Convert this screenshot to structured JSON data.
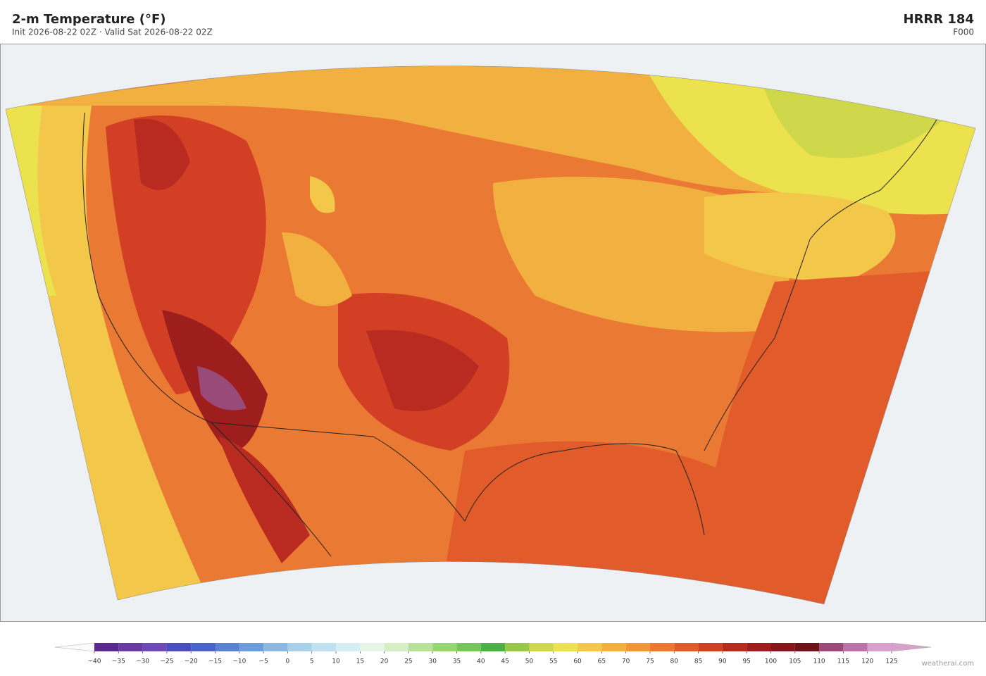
{
  "header": {
    "title": "2-m Temperature  (°F)",
    "subtitle": "Init 2026-08-22 02Z  ·  Valid Sat 2026-08-22 02Z",
    "model": "HRRR  184",
    "forecast_hour": "F000"
  },
  "colorbar": {
    "ticks": [
      {
        "value": -40,
        "label": "−40"
      },
      {
        "value": -35,
        "label": "−35"
      },
      {
        "value": -30,
        "label": "−30"
      },
      {
        "value": -25,
        "label": "−25"
      },
      {
        "value": -20,
        "label": "−20"
      },
      {
        "value": -15,
        "label": "−15"
      },
      {
        "value": -10,
        "label": "−10"
      },
      {
        "value": -5,
        "label": "−5"
      },
      0,
      5,
      10,
      15,
      20,
      25,
      30,
      35,
      40,
      45,
      50,
      55,
      60,
      65,
      70,
      75,
      80,
      85,
      90,
      95,
      100,
      105,
      110,
      115,
      120,
      125
    ],
    "colors": [
      "#5b2a8c",
      "#6a3aa0",
      "#6d4ab5",
      "#4a4fc0",
      "#4a63c8",
      "#5a82d0",
      "#6c9dd8",
      "#8cb8e0",
      "#a8d0e8",
      "#bfe0ee",
      "#d6eef2",
      "#e5f5e6",
      "#d6eec4",
      "#b8e098",
      "#98d574",
      "#78c55e",
      "#4eae48",
      "#98c84a",
      "#cfd84a",
      "#ece24e",
      "#f3c84a",
      "#f2b040",
      "#ef963a",
      "#ea7a33",
      "#e25b2a",
      "#d33f24",
      "#b92a20",
      "#9e1d1d",
      "#85171a",
      "#6e1418",
      "#9a4a78",
      "#b874a8",
      "#d8a0cc"
    ]
  },
  "footer": {
    "credit": "weatherai.com"
  }
}
